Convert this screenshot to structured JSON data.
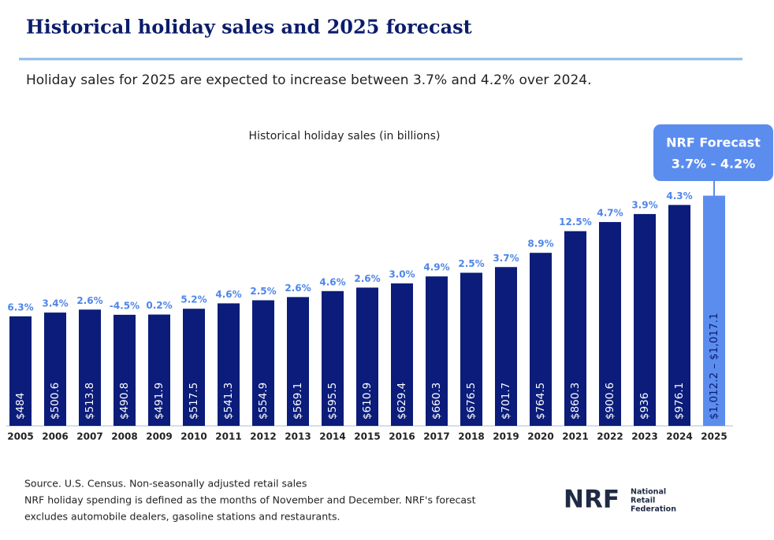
{
  "chart_data": {
    "type": "bar",
    "title": "Historical holiday sales and 2025 forecast",
    "subtitle": "Holiday sales for 2025 are expected to increase between 3.7% and 4.2% over 2024.",
    "chart_title": "Historical holiday sales (in billions)",
    "categories": [
      "2005",
      "2006",
      "2007",
      "2008",
      "2009",
      "2010",
      "2011",
      "2012",
      "2013",
      "2014",
      "2015",
      "2016",
      "2017",
      "2018",
      "2019",
      "2020",
      "2021",
      "2022",
      "2023",
      "2024"
    ],
    "values": [
      484,
      500.6,
      513.8,
      490.8,
      491.9,
      517.5,
      541.3,
      554.9,
      569.1,
      595.5,
      610.9,
      629.4,
      660.3,
      676.5,
      701.7,
      764.5,
      860.3,
      900.6,
      936,
      976.1
    ],
    "value_labels": [
      "$484",
      "$500.6",
      "$513.8",
      "$490.8",
      "$491.9",
      "$517.5",
      "$541.3",
      "$554.9",
      "$569.1",
      "$595.5",
      "$610.9",
      "$629.4",
      "$660.3",
      "$676.5",
      "$701.7",
      "$764.5",
      "$860.3",
      "$900.6",
      "$936",
      "$976.1"
    ],
    "color": "#0b1c7a",
    "growth": [
      6.3,
      3.4,
      2.6,
      -4.5,
      0.2,
      5.2,
      4.6,
      2.5,
      2.6,
      4.6,
      2.6,
      3.0,
      4.9,
      2.5,
      3.7,
      8.9,
      12.5,
      4.7,
      3.9,
      4.3
    ],
    "growth_labels": [
      "6.3%",
      "3.4%",
      "2.6%",
      "-4.5%",
      "0.2%",
      "5.2%",
      "4.6%",
      "2.5%",
      "2.6%",
      "4.6%",
      "2.6%",
      "3.0%",
      "4.9%",
      "2.5%",
      "3.7%",
      "8.9%",
      "12.5%",
      "4.7%",
      "3.9%",
      "4.3%"
    ],
    "growth_color": "#4f86e8",
    "forecast": {
      "category": "2025",
      "low": 1012.2,
      "high": 1017.1,
      "label": "$1,012.2 – $1,017.1",
      "color": "#5b8def",
      "callout_title": "NRF Forecast",
      "callout_range": "3.7% - 4.2%"
    },
    "source": "Source. U.S. Census. Non-seasonally adjusted retail sales",
    "note_line1": "NRF holiday spending is defined as the months of November and December. NRF's forecast",
    "note_line2": "excludes automobile dealers, gasoline stations and restaurants.",
    "logo": {
      "mark": "NRF",
      "line1": "National",
      "line2": "Retail",
      "line3": "Federation"
    }
  }
}
